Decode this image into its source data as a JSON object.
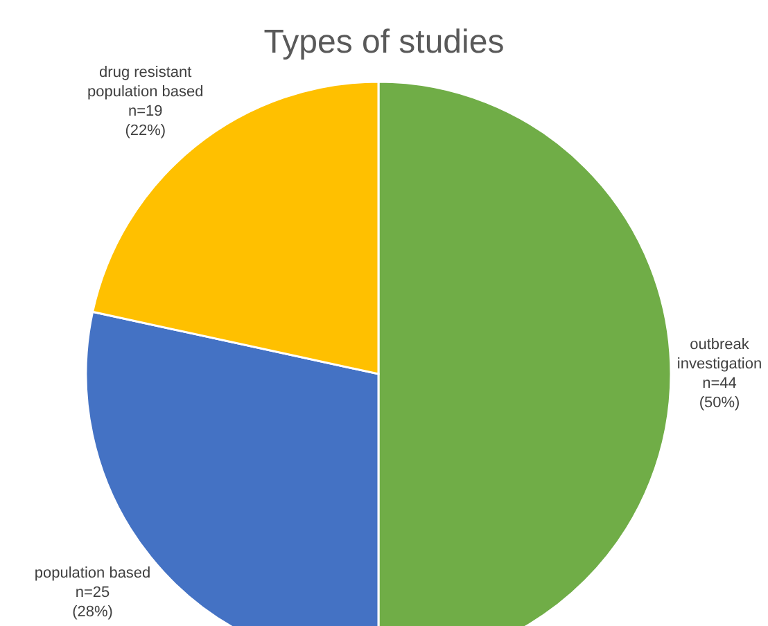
{
  "chart_data": {
    "type": "pie",
    "title": "Types of studies",
    "categories": [
      "outbreak investigation",
      "population based",
      "drug resistant population based"
    ],
    "values": [
      44,
      25,
      19
    ],
    "colors": [
      "#70ad47",
      "#4472c4",
      "#ffc000"
    ],
    "value_labels": [
      "n=44\n(50%)",
      "n=25\n(28%)",
      "n=19\n(22%)"
    ],
    "legend": false
  }
}
